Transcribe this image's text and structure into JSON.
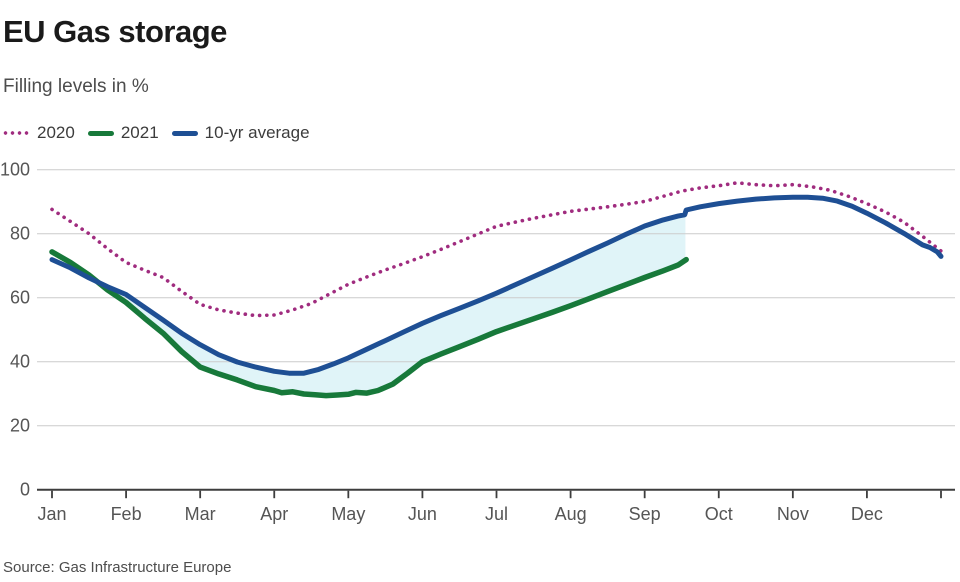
{
  "page": {
    "source": "Source: Gas Infrastructure Europe"
  },
  "chart_data": {
    "type": "line",
    "title": "EU Gas storage",
    "subtitle": "Filling levels in %",
    "x_tick_labels": [
      "Jan",
      "Feb",
      "Mar",
      "Apr",
      "May",
      "Jun",
      "Jul",
      "Aug",
      "Sep",
      "Oct",
      "Nov",
      "Dec"
    ],
    "y_ticks": [
      0,
      20,
      40,
      60,
      80,
      100
    ],
    "y_range": [
      0,
      100
    ],
    "x_range_months": [
      0,
      12
    ],
    "grid": "horizontal",
    "legend_position": "top-left",
    "axis_color": "#3d3d3d",
    "grid_color": "#cccccc",
    "series": [
      {
        "name": "2020",
        "color": "#a02c7f",
        "style": "dotted",
        "width": 3.6,
        "points": [
          [
            0,
            87.6
          ],
          [
            0.25,
            83.8
          ],
          [
            0.5,
            80.0
          ],
          [
            0.75,
            75.3
          ],
          [
            1,
            71.0
          ],
          [
            1.25,
            68.6
          ],
          [
            1.5,
            66.3
          ],
          [
            1.75,
            62.0
          ],
          [
            2,
            57.9
          ],
          [
            2.25,
            56.2
          ],
          [
            2.5,
            55.2
          ],
          [
            2.75,
            54.4
          ],
          [
            3,
            54.6
          ],
          [
            3.25,
            56.2
          ],
          [
            3.5,
            58.2
          ],
          [
            3.75,
            61.2
          ],
          [
            4,
            64.2
          ],
          [
            4.25,
            66.5
          ],
          [
            4.5,
            68.7
          ],
          [
            4.75,
            70.7
          ],
          [
            5,
            72.8
          ],
          [
            5.25,
            75.1
          ],
          [
            5.5,
            77.5
          ],
          [
            5.75,
            79.9
          ],
          [
            6,
            82.3
          ],
          [
            6.25,
            83.6
          ],
          [
            6.5,
            84.8
          ],
          [
            6.75,
            85.9
          ],
          [
            7,
            87.0
          ],
          [
            7.25,
            87.7
          ],
          [
            7.5,
            88.4
          ],
          [
            7.75,
            89.2
          ],
          [
            8,
            90.1
          ],
          [
            8.25,
            91.7
          ],
          [
            8.5,
            93.3
          ],
          [
            8.75,
            94.3
          ],
          [
            9,
            95.0
          ],
          [
            9.25,
            95.9
          ],
          [
            9.5,
            95.3
          ],
          [
            9.75,
            95.0
          ],
          [
            10,
            95.3
          ],
          [
            10.25,
            94.7
          ],
          [
            10.5,
            93.6
          ],
          [
            10.75,
            91.7
          ],
          [
            11,
            89.4
          ],
          [
            11.25,
            86.8
          ],
          [
            11.5,
            83.6
          ],
          [
            11.75,
            79.2
          ],
          [
            12,
            74.6
          ]
        ]
      },
      {
        "name": "2021",
        "color": "#17793a",
        "style": "solid",
        "width": 5.5,
        "points": [
          [
            0,
            74.3
          ],
          [
            0.25,
            71.0
          ],
          [
            0.5,
            67.1
          ],
          [
            0.75,
            62.4
          ],
          [
            1,
            58.5
          ],
          [
            1.25,
            53.6
          ],
          [
            1.5,
            48.9
          ],
          [
            1.75,
            43.2
          ],
          [
            2,
            38.3
          ],
          [
            2.25,
            36.2
          ],
          [
            2.5,
            34.3
          ],
          [
            2.75,
            32.2
          ],
          [
            3,
            31.0
          ],
          [
            3.1,
            30.3
          ],
          [
            3.25,
            30.6
          ],
          [
            3.4,
            29.9
          ],
          [
            3.55,
            29.7
          ],
          [
            3.7,
            29.4
          ],
          [
            3.85,
            29.6
          ],
          [
            4,
            29.8
          ],
          [
            4.1,
            30.4
          ],
          [
            4.25,
            30.2
          ],
          [
            4.4,
            31.0
          ],
          [
            4.6,
            33.0
          ],
          [
            4.8,
            36.4
          ],
          [
            5,
            40.0
          ],
          [
            5.25,
            42.4
          ],
          [
            5.5,
            44.7
          ],
          [
            5.75,
            47.0
          ],
          [
            6,
            49.4
          ],
          [
            6.25,
            51.4
          ],
          [
            6.5,
            53.4
          ],
          [
            6.75,
            55.4
          ],
          [
            7,
            57.5
          ],
          [
            7.25,
            59.7
          ],
          [
            7.5,
            61.9
          ],
          [
            7.75,
            64.1
          ],
          [
            8,
            66.3
          ],
          [
            8.25,
            68.4
          ],
          [
            8.45,
            70.2
          ],
          [
            8.56,
            71.9
          ]
        ]
      },
      {
        "name": "10-yr average",
        "color": "#1e4f94",
        "style": "solid",
        "width": 5,
        "points": [
          [
            0,
            71.9
          ],
          [
            0.25,
            69.3
          ],
          [
            0.5,
            66.2
          ],
          [
            0.75,
            63.4
          ],
          [
            1,
            61.0
          ],
          [
            1.25,
            57.0
          ],
          [
            1.5,
            53.0
          ],
          [
            1.75,
            48.9
          ],
          [
            2,
            45.3
          ],
          [
            2.25,
            42.2
          ],
          [
            2.5,
            39.9
          ],
          [
            2.75,
            38.3
          ],
          [
            3,
            37.0
          ],
          [
            3.2,
            36.4
          ],
          [
            3.4,
            36.4
          ],
          [
            3.6,
            37.6
          ],
          [
            3.8,
            39.3
          ],
          [
            4,
            41.2
          ],
          [
            4.25,
            43.9
          ],
          [
            4.5,
            46.6
          ],
          [
            4.75,
            49.3
          ],
          [
            5,
            52.0
          ],
          [
            5.25,
            54.4
          ],
          [
            5.5,
            56.7
          ],
          [
            5.75,
            59.0
          ],
          [
            6,
            61.4
          ],
          [
            6.25,
            64.0
          ],
          [
            6.5,
            66.6
          ],
          [
            6.75,
            69.2
          ],
          [
            7,
            71.8
          ],
          [
            7.25,
            74.5
          ],
          [
            7.5,
            77.1
          ],
          [
            7.75,
            79.8
          ],
          [
            8,
            82.4
          ],
          [
            8.25,
            84.3
          ],
          [
            8.45,
            85.5
          ],
          [
            8.54,
            85.9
          ],
          [
            8.56,
            87.4
          ],
          [
            8.75,
            88.4
          ],
          [
            9,
            89.4
          ],
          [
            9.25,
            90.2
          ],
          [
            9.5,
            90.8
          ],
          [
            9.75,
            91.2
          ],
          [
            10,
            91.4
          ],
          [
            10.2,
            91.4
          ],
          [
            10.4,
            91.1
          ],
          [
            10.6,
            90.2
          ],
          [
            10.8,
            88.6
          ],
          [
            11,
            86.4
          ],
          [
            11.25,
            83.4
          ],
          [
            11.5,
            80.1
          ],
          [
            11.75,
            76.5
          ],
          [
            11.85,
            75.7
          ],
          [
            11.95,
            74.3
          ],
          [
            12,
            72.9
          ]
        ]
      }
    ],
    "fill_between": {
      "upper": "10-yr average",
      "lower": "2021",
      "from": 0.62,
      "to": 8.55,
      "color": "#e0f4f8"
    }
  }
}
